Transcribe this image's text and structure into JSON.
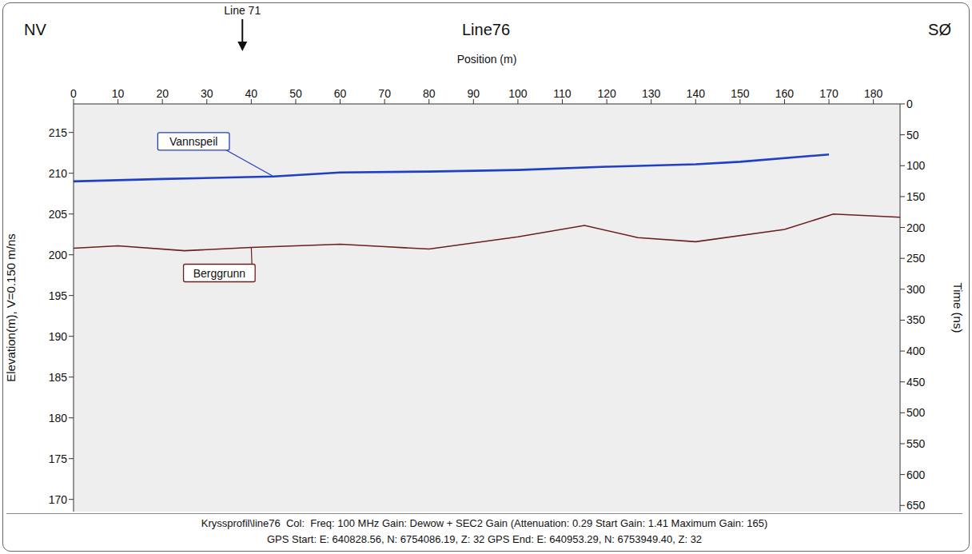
{
  "chart_data": {
    "type": "line",
    "title": "Line76",
    "corner_labels": [
      "NV",
      "SØ"
    ],
    "annotations": [
      {
        "text": "Line 71",
        "x": 38
      }
    ],
    "x_label": "Position (m)",
    "y_label": "Elevation(m),  V=0.150 m/ns",
    "y2_label": "Time (ns)",
    "xlim": [
      0,
      186
    ],
    "xticks": [
      0,
      10,
      20,
      30,
      40,
      50,
      60,
      70,
      80,
      90,
      100,
      110,
      120,
      130,
      140,
      150,
      160,
      170,
      180
    ],
    "ylim": [
      168.5,
      218.5
    ],
    "yticks": [
      170,
      175,
      180,
      185,
      190,
      195,
      200,
      205,
      210,
      215
    ],
    "y2lim": [
      660,
      0
    ],
    "y2ticks": [
      0,
      50,
      100,
      150,
      200,
      250,
      300,
      350,
      400,
      450,
      500,
      550,
      600,
      650
    ],
    "grid": false,
    "series": [
      {
        "name": "Vannspeil",
        "color": "#1f3fc4",
        "x": [
          0,
          20,
          45,
          60,
          80,
          100,
          120,
          140,
          150,
          170
        ],
        "values": [
          209.0,
          209.3,
          209.6,
          210.1,
          210.2,
          210.4,
          210.8,
          211.1,
          211.4,
          212.3
        ]
      },
      {
        "name": "Berggrunn",
        "color": "#6b1f1f",
        "x": [
          0,
          10,
          25,
          40,
          60,
          70,
          80,
          100,
          115,
          127,
          140,
          160,
          171,
          186
        ],
        "values": [
          200.8,
          201.1,
          200.5,
          200.9,
          201.3,
          201.0,
          200.7,
          202.2,
          203.6,
          202.1,
          201.6,
          203.1,
          205.0,
          204.6
        ]
      }
    ],
    "footer": [
      "Kryssprofil\\line76  Col:  Freq: 100 MHz Gain: Dewow + SEC2 Gain (Attenuation: 0.29 Start Gain: 1.41 Maximum Gain: 165)",
      "GPS Start: E: 640828.56, N: 6754086.19, Z: 32 GPS End: E: 640953.29, N: 6753949.40, Z: 32"
    ]
  }
}
